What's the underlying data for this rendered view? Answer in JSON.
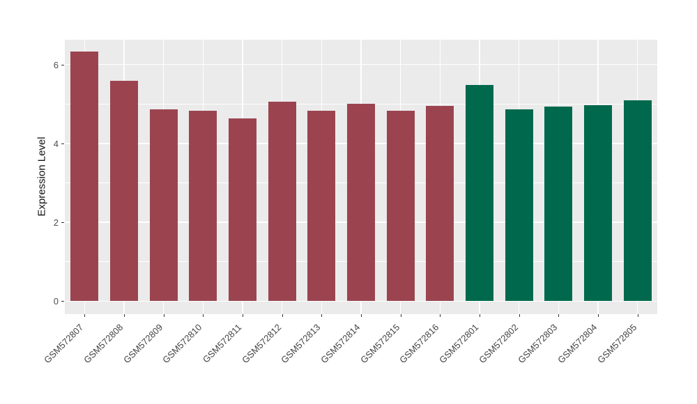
{
  "chart_data": {
    "type": "bar",
    "title": "",
    "xlabel": "",
    "ylabel": "Expression Level",
    "categories": [
      "GSM572807",
      "GSM572808",
      "GSM572809",
      "GSM572810",
      "GSM572811",
      "GSM572812",
      "GSM572813",
      "GSM572814",
      "GSM572815",
      "GSM572816",
      "GSM572801",
      "GSM572802",
      "GSM572803",
      "GSM572804",
      "GSM572805"
    ],
    "values": [
      6.33,
      5.58,
      4.86,
      4.83,
      4.63,
      5.06,
      4.83,
      5.0,
      4.83,
      4.96,
      5.48,
      4.86,
      4.94,
      4.97,
      5.1
    ],
    "bar_group_index": [
      0,
      0,
      0,
      0,
      0,
      0,
      0,
      0,
      0,
      0,
      1,
      1,
      1,
      1,
      1
    ],
    "group_colors": [
      "#9B4450",
      "#00694D"
    ],
    "ylim": [
      -0.33,
      6.63
    ],
    "yticks_major": [
      0,
      2,
      4,
      6
    ],
    "yticks_minor": [
      1,
      3,
      5
    ],
    "grid": true,
    "legend_position": "none",
    "panel_bg": "#EBEBEB",
    "grid_color": "#FFFFFF",
    "tick_color": "#333333",
    "axis_text_color": "#4d4d4d"
  }
}
